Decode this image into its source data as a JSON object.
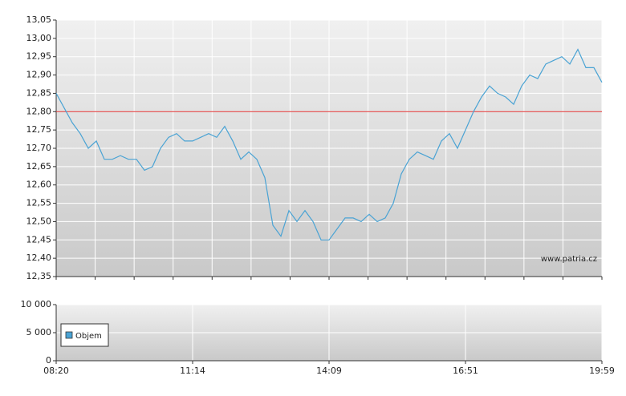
{
  "chart_data": [
    {
      "type": "line",
      "color": "#4aa3d4",
      "values": [
        12.85,
        12.81,
        12.77,
        12.74,
        12.7,
        12.72,
        12.67,
        12.67,
        12.68,
        12.67,
        12.67,
        12.64,
        12.65,
        12.7,
        12.73,
        12.74,
        12.72,
        12.72,
        12.73,
        12.74,
        12.73,
        12.76,
        12.72,
        12.67,
        12.69,
        12.67,
        12.62,
        12.49,
        12.46,
        12.53,
        12.5,
        12.53,
        12.5,
        12.45,
        12.45,
        12.48,
        12.51,
        12.51,
        12.5,
        12.52,
        12.5,
        12.51,
        12.55,
        12.63,
        12.67,
        12.69,
        12.68,
        12.67,
        12.72,
        12.74,
        12.7,
        12.75,
        12.8,
        12.84,
        12.87,
        12.85,
        12.84,
        12.82,
        12.87,
        12.9,
        12.89,
        12.93,
        12.94,
        12.95,
        12.93,
        12.97,
        12.92,
        12.92,
        12.88
      ],
      "reference_line": 12.8,
      "reference_color": "#e03030",
      "ylim": [
        12.35,
        13.05
      ],
      "yticks": [
        {
          "value": 12.35,
          "label": "12,35"
        },
        {
          "value": 12.4,
          "label": "12,40"
        },
        {
          "value": 12.45,
          "label": "12,45"
        },
        {
          "value": 12.5,
          "label": "12,50"
        },
        {
          "value": 12.55,
          "label": "12,55"
        },
        {
          "value": 12.6,
          "label": "12,60"
        },
        {
          "value": 12.65,
          "label": "12,65"
        },
        {
          "value": 12.7,
          "label": "12,70"
        },
        {
          "value": 12.75,
          "label": "12,75"
        },
        {
          "value": 12.8,
          "label": "12,80"
        },
        {
          "value": 12.85,
          "label": "12,85"
        },
        {
          "value": 12.9,
          "label": "12,90"
        },
        {
          "value": 12.95,
          "label": "12,95"
        },
        {
          "value": 13.0,
          "label": "13,00"
        },
        {
          "value": 13.05,
          "label": "13,05"
        }
      ],
      "grid": true,
      "annotation": "www.patria.cz"
    },
    {
      "type": "bar",
      "series": [
        {
          "name": "Objem",
          "color": "#4aa3d4"
        }
      ],
      "categories": [
        "08:20",
        "11:14",
        "14:09",
        "16:51",
        "19:59"
      ],
      "ylim": [
        0,
        10000
      ],
      "yticks": [
        0,
        {
          "value": 5000,
          "label": "5 000"
        },
        {
          "value": 10000,
          "label": "10 000"
        }
      ],
      "grid": true,
      "legend": "upper left"
    }
  ]
}
